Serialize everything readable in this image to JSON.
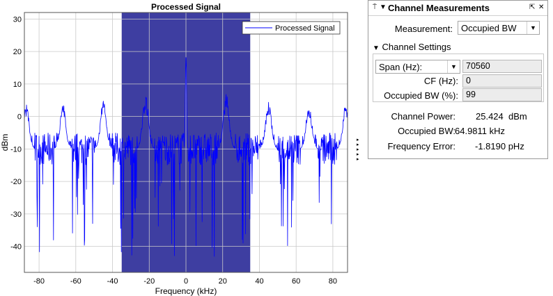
{
  "plot": {
    "title": "Processed Signal",
    "xlabel": "Frequency (kHz)",
    "ylabel": "dBm",
    "legend": "Processed Signal",
    "xticks": [
      "-80",
      "-60",
      "-40",
      "-20",
      "0",
      "20",
      "40",
      "60",
      "80"
    ],
    "yticks": [
      "30",
      "20",
      "10",
      "0",
      "-10",
      "-20",
      "-30",
      "-40"
    ],
    "line_color": "#0000ff",
    "band_color": "#1c1c91"
  },
  "chart_data": {
    "type": "line",
    "title": "Processed Signal",
    "xlabel": "Frequency (kHz)",
    "ylabel": "dBm",
    "xlim": [
      -88,
      88
    ],
    "ylim": [
      -48,
      32
    ],
    "grid": true,
    "legend_position": "top-right",
    "series": [
      {
        "name": "Processed Signal"
      }
    ],
    "peaks": [
      {
        "x": 0,
        "y": 25
      },
      {
        "x": -22,
        "y": 7
      },
      {
        "x": 22,
        "y": 7
      },
      {
        "x": -45,
        "y": 5
      },
      {
        "x": 45,
        "y": 5
      },
      {
        "x": -67,
        "y": 4
      },
      {
        "x": 67,
        "y": 4
      },
      {
        "x": -87,
        "y": 4
      },
      {
        "x": 87,
        "y": 4
      }
    ],
    "noise_floor": -10,
    "min_value": -44,
    "occupied_band": [
      -35,
      35
    ]
  },
  "panel": {
    "title": "Channel Measurements",
    "measurement_label": "Measurement:",
    "measurement_value": "Occupied BW",
    "settings_title": "Channel Settings",
    "span_label": "Span (Hz):",
    "span_value": "70560",
    "cf_label": "CF (Hz):",
    "cf_value": "0",
    "obw_label": "Occupied BW (%):",
    "obw_value": "99",
    "results": [
      {
        "label": "Channel Power:",
        "value": "25.424  dBm"
      },
      {
        "label": "Occupied BW:",
        "value": "64.9811 kHz"
      },
      {
        "label": "Frequency Error:",
        "value": "-1.8190 pHz"
      }
    ]
  }
}
